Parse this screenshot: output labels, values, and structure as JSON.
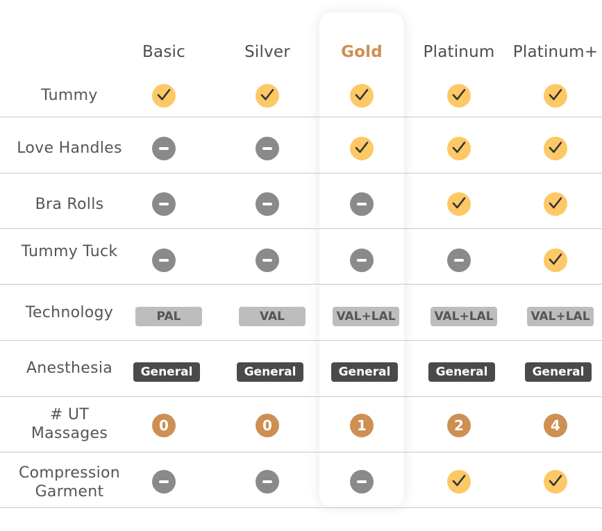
{
  "plans": [
    {
      "name": "Basic",
      "highlight": false
    },
    {
      "name": "Silver",
      "highlight": false
    },
    {
      "name": "Gold",
      "highlight": true
    },
    {
      "name": "Platinum",
      "highlight": false
    },
    {
      "name": "Platinum+",
      "highlight": false
    }
  ],
  "rows": [
    {
      "label": [
        "Tummy"
      ],
      "type": "icon",
      "values": [
        "yes",
        "yes",
        "yes",
        "yes",
        "yes"
      ]
    },
    {
      "label": [
        "Love Handles"
      ],
      "type": "icon",
      "values": [
        "no",
        "no",
        "yes",
        "yes",
        "yes"
      ]
    },
    {
      "label": [
        "Bra Rolls"
      ],
      "type": "icon",
      "values": [
        "no",
        "no",
        "no",
        "yes",
        "yes"
      ]
    },
    {
      "label": [
        "Tummy Tuck"
      ],
      "type": "icon",
      "values": [
        "no",
        "no",
        "no",
        "no",
        "yes"
      ]
    },
    {
      "label": [
        "Technology"
      ],
      "type": "tech",
      "values": [
        "PAL",
        "VAL",
        "VAL+LAL",
        "VAL+LAL",
        "VAL+LAL"
      ]
    },
    {
      "label": [
        "Anesthesia"
      ],
      "type": "anesthesia",
      "values": [
        "General",
        "General",
        "General",
        "General",
        "General"
      ]
    },
    {
      "label": [
        "# UT",
        "Massages"
      ],
      "type": "count",
      "values": [
        "0",
        "0",
        "1",
        "2",
        "4"
      ]
    },
    {
      "label": [
        "Compression",
        "Garment"
      ],
      "type": "icon",
      "values": [
        "no",
        "no",
        "no",
        "yes",
        "yes"
      ]
    }
  ],
  "icon_names": {
    "yes": "checkmark-icon",
    "no": "minus-icon"
  },
  "colors": {
    "highlight_header": "#cd8f52",
    "check_fill": "#fdc866",
    "minus_fill": "#8a8a8a",
    "count_fill": "#cd8f52",
    "tech_pill": "#bdbdbd",
    "anesthesia_pill": "#4a4a4a"
  }
}
